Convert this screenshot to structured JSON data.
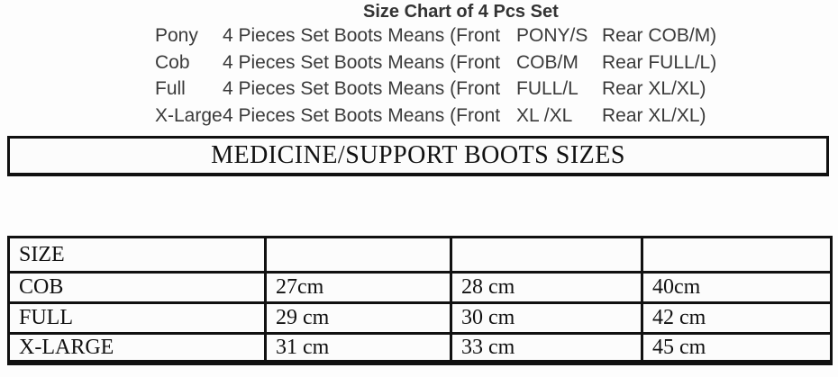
{
  "title": "Size Chart of 4 Pcs Set",
  "set_lines": [
    {
      "label": "Pony",
      "desc": "4 Pieces Set Boots Means (Front",
      "front": "PONY/S",
      "rear": "Rear COB/M)"
    },
    {
      "label": "Cob",
      "desc": "4 Pieces Set Boots Means (Front",
      "front": "COB/M",
      "rear": "Rear FULL/L)"
    },
    {
      "label": "Full",
      "desc": "4 Pieces Set Boots Means (Front",
      "front": "FULL/L",
      "rear": "Rear XL/XL)"
    },
    {
      "label": "X-Large",
      "desc": "4 Pieces Set Boots Means (Front",
      "front": "XL /XL",
      "rear": "Rear XL/XL)"
    }
  ],
  "banner": "MEDICINE/SUPPORT BOOTS SIZES",
  "table": {
    "rows": [
      [
        "SIZE",
        "",
        "",
        ""
      ],
      [
        "COB",
        "27cm",
        "28 cm",
        "40cm"
      ],
      [
        "FULL",
        "29 cm",
        "30 cm",
        "42 cm"
      ],
      [
        "X-LARGE",
        "31 cm",
        "33 cm",
        "45 cm"
      ]
    ]
  },
  "colors": {
    "background": "#fdfdfd",
    "text_sans": "#3a3a3a",
    "text_serif": "#111111",
    "border": "#111111"
  }
}
